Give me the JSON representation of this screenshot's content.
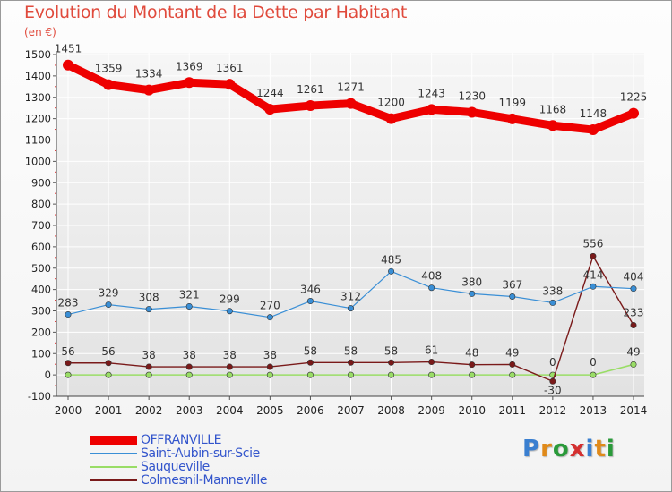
{
  "title": "Evolution du Montant de la Dette par Habitant",
  "subtitle": "(en €)",
  "logo": "Proxiti",
  "chart_data": {
    "type": "line",
    "title": "Evolution du Montant de la Dette par Habitant",
    "ylabel": "(en €)",
    "x": [
      2000,
      2001,
      2002,
      2003,
      2004,
      2005,
      2006,
      2007,
      2008,
      2009,
      2010,
      2011,
      2012,
      2013,
      2014
    ],
    "ylim": [
      -100,
      1500
    ],
    "yticks": [
      -100,
      0,
      100,
      200,
      300,
      400,
      500,
      600,
      700,
      800,
      900,
      1000,
      1100,
      1200,
      1300,
      1400,
      1500
    ],
    "grid": true,
    "legend": "bottom-left",
    "series": [
      {
        "name": "OFFRANVILLE",
        "color": "#ee0000",
        "values": [
          1451,
          1359,
          1334,
          1369,
          1361,
          1244,
          1261,
          1271,
          1200,
          1243,
          1230,
          1199,
          1168,
          1148,
          1225
        ]
      },
      {
        "name": "Saint-Aubin-sur-Scie",
        "color": "#3a8fd6",
        "values": [
          283,
          329,
          308,
          321,
          299,
          270,
          346,
          312,
          485,
          408,
          380,
          367,
          338,
          414,
          404
        ]
      },
      {
        "name": "Sauqueville",
        "color": "#99dd66",
        "values": [
          0,
          0,
          0,
          0,
          0,
          0,
          0,
          0,
          0,
          0,
          0,
          0,
          0,
          0,
          49
        ]
      },
      {
        "name": "Colmesnil-Manneville",
        "color": "#7a1a1a",
        "values": [
          56,
          56,
          38,
          38,
          38,
          38,
          58,
          58,
          58,
          61,
          48,
          49,
          -30,
          556,
          233
        ]
      }
    ],
    "data_labels": [
      {
        "series": 0,
        "points": [
          0,
          1,
          2,
          3,
          4,
          5,
          6,
          7,
          8,
          9,
          10,
          11,
          12,
          13,
          14
        ]
      },
      {
        "series": 1,
        "points": [
          0,
          1,
          2,
          3,
          4,
          5,
          6,
          7,
          8,
          9,
          10,
          11,
          12,
          13,
          14
        ]
      },
      {
        "series": 2,
        "points": [
          12,
          13,
          14
        ]
      },
      {
        "series": 3,
        "points": [
          0,
          1,
          2,
          3,
          4,
          5,
          6,
          7,
          8,
          9,
          10,
          11,
          12,
          13,
          14
        ]
      }
    ]
  }
}
